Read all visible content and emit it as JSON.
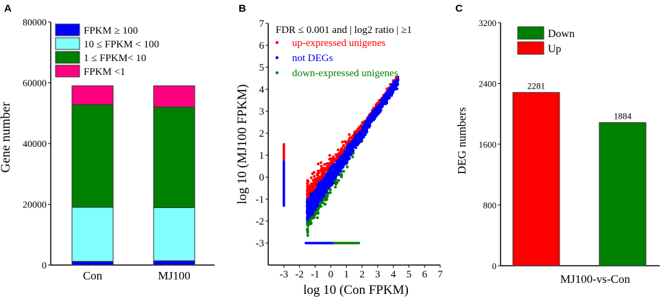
{
  "chart_data": [
    {
      "panel": "A",
      "type": "bar",
      "stacked": true,
      "title": "",
      "xlabel": "",
      "ylabel": "Gene number",
      "ylim": [
        0,
        80000
      ],
      "yticks": [
        0,
        20000,
        40000,
        60000,
        80000
      ],
      "categories": [
        "Con",
        "MJ100"
      ],
      "series": [
        {
          "name": "FPKM ≥ 100",
          "color": "#0000ff",
          "values": [
            1200,
            1400
          ]
        },
        {
          "name": "10 ≤ FPKM < 100",
          "color": "#80ffff",
          "values": [
            17800,
            17500
          ]
        },
        {
          "name": "1 ≤ FPKM<  10",
          "color": "#008000",
          "values": [
            33800,
            33100
          ]
        },
        {
          "name": "FPKM <1",
          "color": "#ff0080",
          "values": [
            6200,
            7000
          ]
        }
      ],
      "legend_position": "top-left"
    },
    {
      "panel": "B",
      "type": "scatter",
      "xlabel": "log 10 (Con FPKM)",
      "ylabel": "log 10 (MJ100 FPKM)",
      "xlim": [
        -4,
        7
      ],
      "ylim": [
        -4,
        7
      ],
      "xticks": [
        -3,
        -2,
        -1,
        0,
        1,
        2,
        3,
        4,
        5,
        6,
        7
      ],
      "yticks": [
        -3,
        -2,
        -1,
        0,
        1,
        2,
        3,
        4,
        5,
        6,
        7
      ],
      "legend_title": "FDR ≤ 0.001 and | log2 ratio | ≥1",
      "series": [
        {
          "name": "up-expressed unigenes",
          "color": "#ff0000"
        },
        {
          "name": "not DEGs",
          "color": "#0000ff"
        },
        {
          "name": "down-expressed unigenes",
          "color": "#008000"
        }
      ],
      "cloud": {
        "x_range": [
          -1.5,
          4.3
        ],
        "fold_threshold_log10": 0.301,
        "n_points": 2500,
        "seed": 7
      },
      "segments": [
        {
          "series": "not DEGs",
          "x": [
            -3,
            -3
          ],
          "y": [
            -1.3,
            0.8
          ]
        },
        {
          "series": "up-expressed unigenes",
          "x": [
            -3,
            -3
          ],
          "y": [
            0.8,
            1.5
          ]
        },
        {
          "series": "not DEGs",
          "x": [
            -1.6,
            0.2
          ],
          "y": [
            -3,
            -3
          ]
        },
        {
          "series": "down-expressed unigenes",
          "x": [
            0.2,
            1.8
          ],
          "y": [
            -3,
            -3
          ]
        }
      ],
      "legend_position": "top-left"
    },
    {
      "panel": "C",
      "type": "bar",
      "xlabel": "MJ100-vs-Con",
      "ylabel": "DEG numbers",
      "ylim": [
        0,
        3200
      ],
      "yticks": [
        0,
        800,
        1600,
        2400,
        3200
      ],
      "categories": [
        "MJ100-vs-Con"
      ],
      "series": [
        {
          "name": "Up",
          "color": "#ff0000",
          "values": [
            2281
          ]
        },
        {
          "name": "Down",
          "color": "#008000",
          "values": [
            1884
          ]
        }
      ],
      "data_labels": [
        "2281",
        "1884"
      ],
      "legend_order": [
        "Down",
        "Up"
      ],
      "legend_position": "top-left"
    }
  ],
  "panel_labels": [
    "A",
    "B",
    "C"
  ]
}
